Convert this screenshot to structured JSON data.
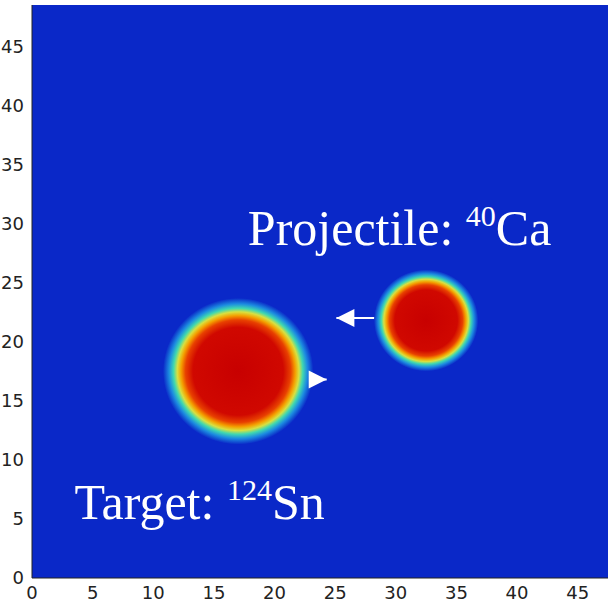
{
  "chart_data": {
    "type": "heatmap",
    "xlim": [
      0,
      47.5
    ],
    "ylim": [
      0,
      48.5
    ],
    "xticks": [
      0,
      5,
      10,
      15,
      20,
      25,
      30,
      35,
      40,
      45
    ],
    "yticks": [
      0,
      5,
      10,
      15,
      20,
      25,
      30,
      35,
      40,
      45
    ],
    "nuclei": [
      {
        "label": "Projectile:",
        "mass_number": 40,
        "element": "Ca",
        "center": [
          32.5,
          21.8
        ],
        "radius": 4.3,
        "arrow": {
          "from": [
            32.5,
            22.0
          ],
          "to": [
            25.1,
            22.0
          ]
        }
      },
      {
        "label": "Target:",
        "mass_number": 124,
        "element": "Sn",
        "center": [
          17,
          17.5
        ],
        "radius": 6.2,
        "arrow": {
          "from": [
            17.5,
            16.8
          ],
          "to": [
            24.3,
            16.8
          ]
        }
      }
    ]
  }
}
